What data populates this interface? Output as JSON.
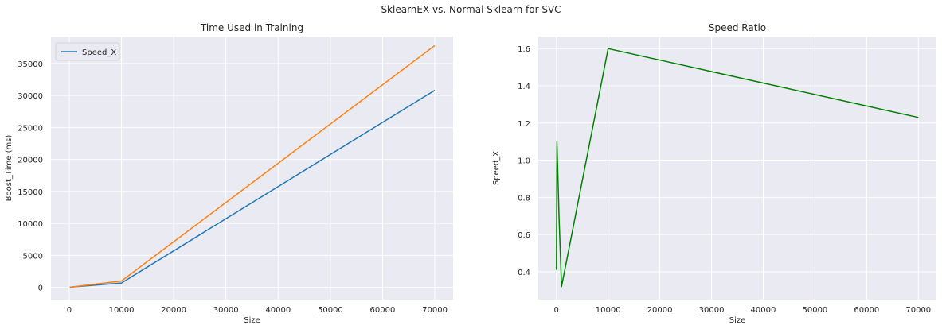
{
  "suptitle": "SklearnEX vs. Normal Sklearn for SVC",
  "colors": {
    "axes_bg": "#eaeaf2",
    "grid": "#ffffff"
  },
  "chart_data": [
    {
      "type": "line",
      "title": "Time Used in Training",
      "xlabel": "Size",
      "ylabel": "Boost_Time (ms)",
      "xlim": [
        -3500,
        73500
      ],
      "ylim": [
        -1900,
        39200
      ],
      "xticks": [
        0,
        10000,
        20000,
        30000,
        40000,
        50000,
        60000,
        70000
      ],
      "xtick_labels": [
        "0",
        "10000",
        "20000",
        "30000",
        "40000",
        "50000",
        "60000",
        "70000"
      ],
      "yticks": [
        0,
        5000,
        10000,
        15000,
        20000,
        25000,
        30000,
        35000
      ],
      "ytick_labels": [
        "0",
        "5000",
        "10000",
        "15000",
        "20000",
        "25000",
        "30000",
        "35000"
      ],
      "grid": true,
      "legend": {
        "placement": "top-left",
        "entries": [
          "Speed_X"
        ]
      },
      "series": [
        {
          "name": "Speed_X",
          "color": "#1f77b4",
          "x": [
            100,
            1000,
            10000,
            70000
          ],
          "y": [
            20,
            100,
            700,
            30800
          ]
        },
        {
          "color": "#ff7f0e",
          "x": [
            100,
            1000,
            10000,
            70000
          ],
          "y": [
            30,
            120,
            1000,
            37800
          ]
        }
      ]
    },
    {
      "type": "line",
      "title": "Speed Ratio",
      "xlabel": "Size",
      "ylabel": "Speed_X",
      "xlim": [
        -3500,
        73500
      ],
      "ylim": [
        0.25,
        1.665
      ],
      "xticks": [
        0,
        10000,
        20000,
        30000,
        40000,
        50000,
        60000,
        70000
      ],
      "xtick_labels": [
        "0",
        "10000",
        "20000",
        "30000",
        "40000",
        "50000",
        "60000",
        "70000"
      ],
      "yticks": [
        0.4,
        0.6,
        0.8,
        1.0,
        1.2,
        1.4,
        1.6
      ],
      "ytick_labels": [
        "0.4",
        "0.6",
        "0.8",
        "1.0",
        "1.2",
        "1.4",
        "1.6"
      ],
      "grid": true,
      "series": [
        {
          "color": "#008000",
          "x": [
            10,
            100,
            500,
            1000,
            10000,
            70000
          ],
          "y": [
            0.41,
            1.1,
            0.7,
            0.32,
            1.6,
            1.23
          ]
        }
      ]
    }
  ]
}
